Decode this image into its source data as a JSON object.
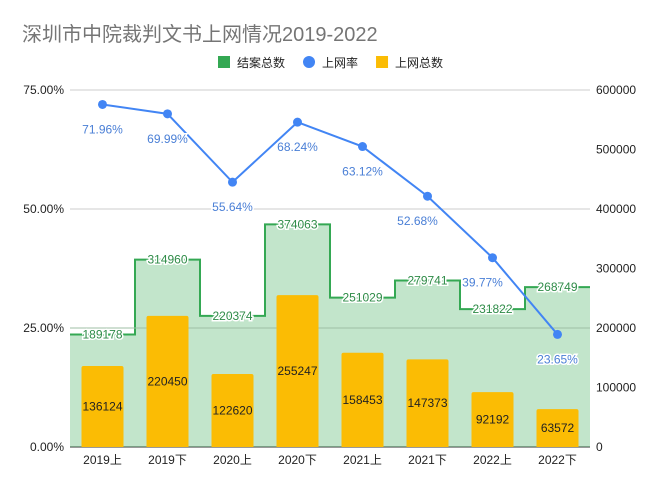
{
  "chart_data": {
    "type": "combo",
    "title": "深圳市中院裁判文书上网情况2019-2022",
    "categories": [
      "2019上",
      "2019下",
      "2020上",
      "2020下",
      "2021上",
      "2021下",
      "2022上",
      "2022下"
    ],
    "series": [
      {
        "name": "结案总数",
        "type": "stepped-area",
        "axis": "right",
        "color": "#34a853",
        "values": [
          189178,
          314960,
          220374,
          374063,
          251029,
          279741,
          231822,
          268749
        ]
      },
      {
        "name": "上网率",
        "type": "line",
        "axis": "left",
        "color": "#4285f4",
        "values": [
          71.96,
          69.99,
          55.64,
          68.24,
          63.12,
          52.68,
          39.77,
          23.65
        ],
        "labels": [
          "71.96%",
          "69.99%",
          "55.64%",
          "68.24%",
          "63.12%",
          "52.68%",
          "39.77%",
          "23.65%"
        ]
      },
      {
        "name": "上网总数",
        "type": "bar",
        "axis": "right",
        "color": "#fbbc04",
        "values": [
          136124,
          220450,
          122620,
          255247,
          158453,
          147373,
          92192,
          63572
        ]
      }
    ],
    "left_axis": {
      "range": [
        0,
        75
      ],
      "ticks": [
        "0.00%",
        "25.00%",
        "50.00%",
        "75.00%"
      ]
    },
    "right_axis": {
      "range": [
        0,
        600000
      ],
      "ticks": [
        "0",
        "100000",
        "200000",
        "300000",
        "400000",
        "500000",
        "600000"
      ]
    },
    "legend": "top",
    "grid": true
  }
}
